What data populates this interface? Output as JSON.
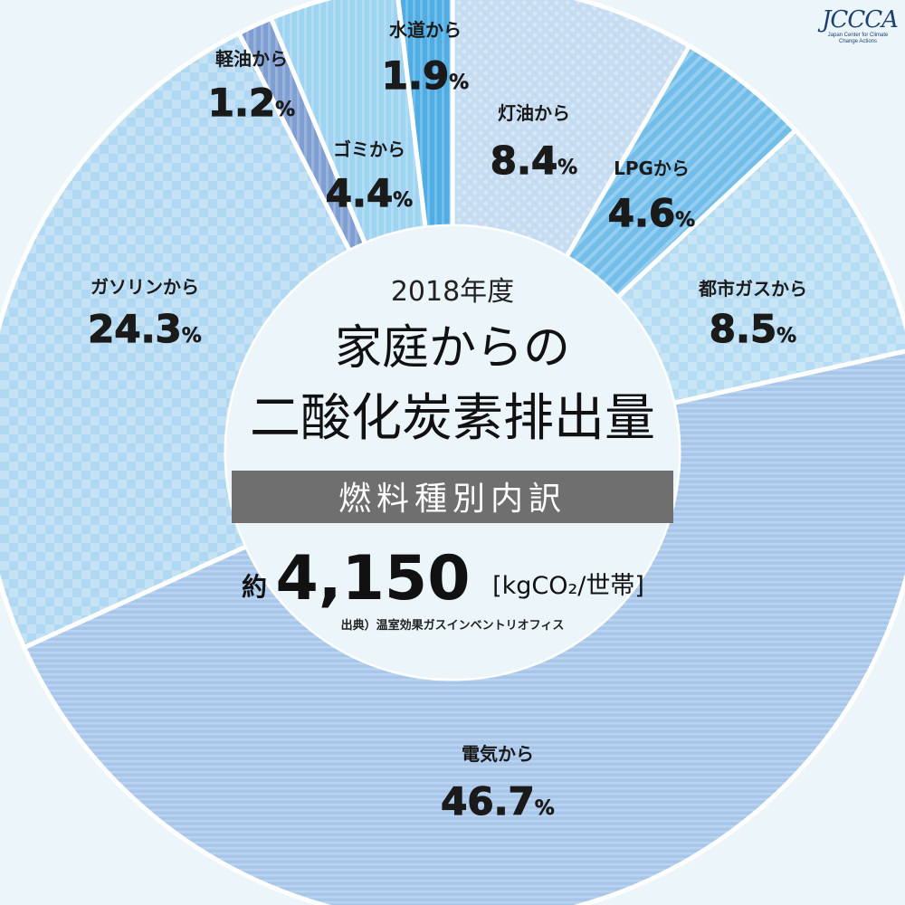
{
  "chart_data": {
    "type": "pie",
    "title_year": "2018年度",
    "title_line1": "家庭からの",
    "title_line2": "二酸化炭素排出量",
    "subtitle_band": "燃料種別内訳",
    "total_prefix": "約",
    "total_value": "4,150",
    "total_unit": "[kgCO₂/世帯]",
    "source": "出典）温室効果ガスインベントリオフィス",
    "slices": [
      {
        "name": "灯油から",
        "value": 8.4,
        "display": "8.4",
        "color": "#c5dcf1"
      },
      {
        "name": "LPGから",
        "value": 4.6,
        "display": "4.6",
        "color": "#72bde9"
      },
      {
        "name": "都市ガスから",
        "value": 8.5,
        "display": "8.5",
        "color": "#b6dcf3"
      },
      {
        "name": "電気から",
        "value": 46.7,
        "display": "46.7",
        "color": "#a7c6ea"
      },
      {
        "name": "ガソリンから",
        "value": 24.3,
        "display": "24.3",
        "color": "#b1d8f2"
      },
      {
        "name": "軽油から",
        "value": 1.2,
        "display": "1.2",
        "color": "#7f9fd3"
      },
      {
        "name": "ゴミから",
        "value": 4.4,
        "display": "4.4",
        "color": "#9ed3f1"
      },
      {
        "name": "水道から",
        "value": 1.9,
        "display": "1.9",
        "color": "#4fade4"
      }
    ],
    "percent_symbol": "%"
  },
  "logo": {
    "text": "JCCCA",
    "subtitle": "Japan Center for Climate Change Actions"
  }
}
